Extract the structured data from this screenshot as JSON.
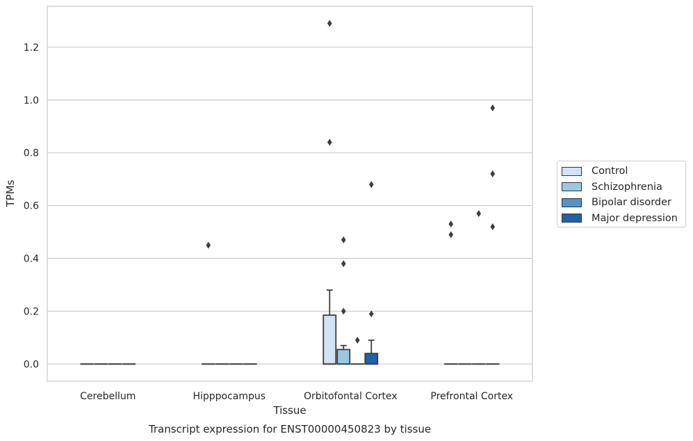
{
  "chart_data": {
    "type": "box",
    "title": "Transcript expression for ENST00000450823 by tissue",
    "xlabel": "Tissue",
    "ylabel": "TPMs",
    "ylim": [
      -0.065,
      1.355
    ],
    "yticks": [
      "0.0",
      "0.2",
      "0.4",
      "0.6",
      "0.8",
      "1.0",
      "1.2"
    ],
    "ytick_values": [
      0,
      0.2,
      0.4,
      0.6,
      0.8,
      1.0,
      1.2
    ],
    "categories": [
      "Cerebellum",
      "Hipppocampus",
      "Orbitofontal Cortex",
      "Prefrontal Cortex"
    ],
    "grid": "horizontal",
    "legend_position": "right",
    "series": [
      {
        "name": "Control",
        "color": "#d2e3f3",
        "boxes": [
          {
            "category": "Cerebellum",
            "q1": 0,
            "median": 0,
            "q3": 0,
            "whisker_low": 0,
            "whisker_high": 0,
            "outliers": []
          },
          {
            "category": "Hipppocampus",
            "q1": 0,
            "median": 0,
            "q3": 0,
            "whisker_low": 0,
            "whisker_high": 0,
            "outliers": [
              0.45
            ]
          },
          {
            "category": "Orbitofontal Cortex",
            "q1": 0,
            "median": 0,
            "q3": 0.185,
            "whisker_low": 0,
            "whisker_high": 0.28,
            "outliers": [
              0.84,
              1.29
            ]
          },
          {
            "category": "Prefrontal Cortex",
            "q1": 0,
            "median": 0,
            "q3": 0,
            "whisker_low": 0,
            "whisker_high": 0,
            "outliers": [
              0.49,
              0.53
            ]
          }
        ]
      },
      {
        "name": "Schizophrenia",
        "color": "#9ac8e1",
        "boxes": [
          {
            "category": "Cerebellum",
            "q1": 0,
            "median": 0,
            "q3": 0,
            "whisker_low": 0,
            "whisker_high": 0,
            "outliers": []
          },
          {
            "category": "Hipppocampus",
            "q1": 0,
            "median": 0,
            "q3": 0,
            "whisker_low": 0,
            "whisker_high": 0,
            "outliers": []
          },
          {
            "category": "Orbitofontal Cortex",
            "q1": 0,
            "median": 0,
            "q3": 0.055,
            "whisker_low": 0,
            "whisker_high": 0.07,
            "outliers": [
              0.2,
              0.38,
              0.47
            ]
          },
          {
            "category": "Prefrontal Cortex",
            "q1": 0,
            "median": 0,
            "q3": 0,
            "whisker_low": 0,
            "whisker_high": 0,
            "outliers": []
          }
        ]
      },
      {
        "name": "Bipolar disorder",
        "color": "#5294c6",
        "boxes": [
          {
            "category": "Cerebellum",
            "q1": 0,
            "median": 0,
            "q3": 0,
            "whisker_low": 0,
            "whisker_high": 0,
            "outliers": []
          },
          {
            "category": "Hipppocampus",
            "q1": 0,
            "median": 0,
            "q3": 0,
            "whisker_low": 0,
            "whisker_high": 0,
            "outliers": []
          },
          {
            "category": "Orbitofontal Cortex",
            "q1": 0,
            "median": 0,
            "q3": 0,
            "whisker_low": 0,
            "whisker_high": 0,
            "outliers": [
              0.09
            ]
          },
          {
            "category": "Prefrontal Cortex",
            "q1": 0,
            "median": 0,
            "q3": 0,
            "whisker_low": 0,
            "whisker_high": 0,
            "outliers": [
              0.57
            ]
          }
        ]
      },
      {
        "name": "Major depression",
        "color": "#1f62a8",
        "boxes": [
          {
            "category": "Cerebellum",
            "q1": 0,
            "median": 0,
            "q3": 0,
            "whisker_low": 0,
            "whisker_high": 0,
            "outliers": []
          },
          {
            "category": "Hipppocampus",
            "q1": 0,
            "median": 0,
            "q3": 0,
            "whisker_low": 0,
            "whisker_high": 0,
            "outliers": []
          },
          {
            "category": "Orbitofontal Cortex",
            "q1": 0,
            "median": 0,
            "q3": 0.04,
            "whisker_low": 0,
            "whisker_high": 0.09,
            "outliers": [
              0.19,
              0.68
            ]
          },
          {
            "category": "Prefrontal Cortex",
            "q1": 0,
            "median": 0,
            "q3": 0,
            "whisker_low": 0,
            "whisker_high": 0,
            "outliers": [
              0.52,
              0.72,
              0.97
            ]
          }
        ]
      }
    ]
  }
}
